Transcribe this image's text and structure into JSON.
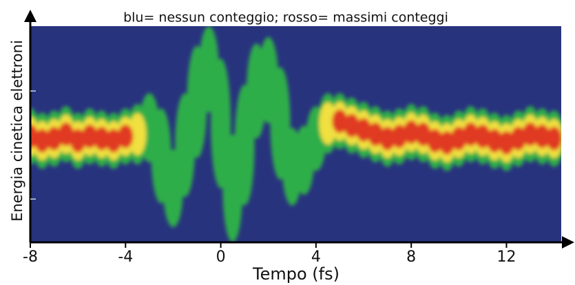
{
  "chart_data": {
    "type": "streak-heatmap",
    "title": "blu= nessun conteggio; rosso= massimi conteggi",
    "x_label": "Tempo (fs)",
    "y_label": "Energia cinetica elettroni",
    "x": [
      -8,
      -7.5,
      -7,
      -6.5,
      -6,
      -5.5,
      -5,
      -4.5,
      -4,
      -3.5,
      -3,
      -2.5,
      -2,
      -1.5,
      -1,
      -0.5,
      0,
      0.5,
      1,
      1.5,
      2,
      2.5,
      3,
      3.5,
      4,
      4.5,
      5,
      5.5,
      6,
      6.5,
      7,
      7.5,
      8,
      8.5,
      9,
      9.5,
      10,
      10.5,
      11,
      11.5,
      12,
      12.5,
      13,
      13.5,
      14
    ],
    "center": [
      4.9,
      4.7,
      4.8,
      5.0,
      4.7,
      4.9,
      4.8,
      4.7,
      4.9,
      5.0,
      5.3,
      4.0,
      2.5,
      4.5,
      6.5,
      8.0,
      5.5,
      2.5,
      4.5,
      7.0,
      7.5,
      5.5,
      3.5,
      3.8,
      4.8,
      5.5,
      5.6,
      5.4,
      5.2,
      5.0,
      4.8,
      4.9,
      5.1,
      5.0,
      4.7,
      4.6,
      4.8,
      5.0,
      4.9,
      4.7,
      4.6,
      4.8,
      5.0,
      4.9,
      4.8
    ],
    "width": [
      1.3,
      1.3,
      1.3,
      1.3,
      1.3,
      1.3,
      1.3,
      1.3,
      1.3,
      1.4,
      1.6,
      2.2,
      1.8,
      2.4,
      2.6,
      2.0,
      3.0,
      2.5,
      2.8,
      2.2,
      2.0,
      2.6,
      1.8,
      1.6,
      1.5,
      1.4,
      1.3,
      1.3,
      1.3,
      1.3,
      1.3,
      1.3,
      1.3,
      1.3,
      1.3,
      1.3,
      1.3,
      1.3,
      1.3,
      1.3,
      1.3,
      1.3,
      1.3,
      1.3,
      1.3
    ],
    "intensity": [
      0.9,
      1.0,
      0.95,
      0.9,
      1.0,
      0.9,
      0.95,
      0.9,
      0.85,
      0.7,
      0.4,
      0.35,
      0.35,
      0.3,
      0.35,
      0.35,
      0.3,
      0.35,
      0.3,
      0.35,
      0.35,
      0.3,
      0.4,
      0.5,
      0.55,
      0.75,
      0.9,
      0.95,
      1.0,
      0.9,
      0.95,
      1.0,
      0.9,
      0.95,
      1.0,
      0.9,
      0.95,
      1.0,
      0.9,
      1.0,
      0.95,
      0.9,
      1.0,
      0.95,
      0.9
    ],
    "colormap": [
      "#28337e",
      "#2fae4a",
      "#f0e040",
      "#e03a20"
    ],
    "xlim": [
      -8,
      14.3
    ],
    "xticks": [
      -8,
      -4,
      0,
      4,
      8,
      12
    ],
    "ylim": [
      0,
      10
    ],
    "yticks": [
      2,
      7
    ]
  }
}
